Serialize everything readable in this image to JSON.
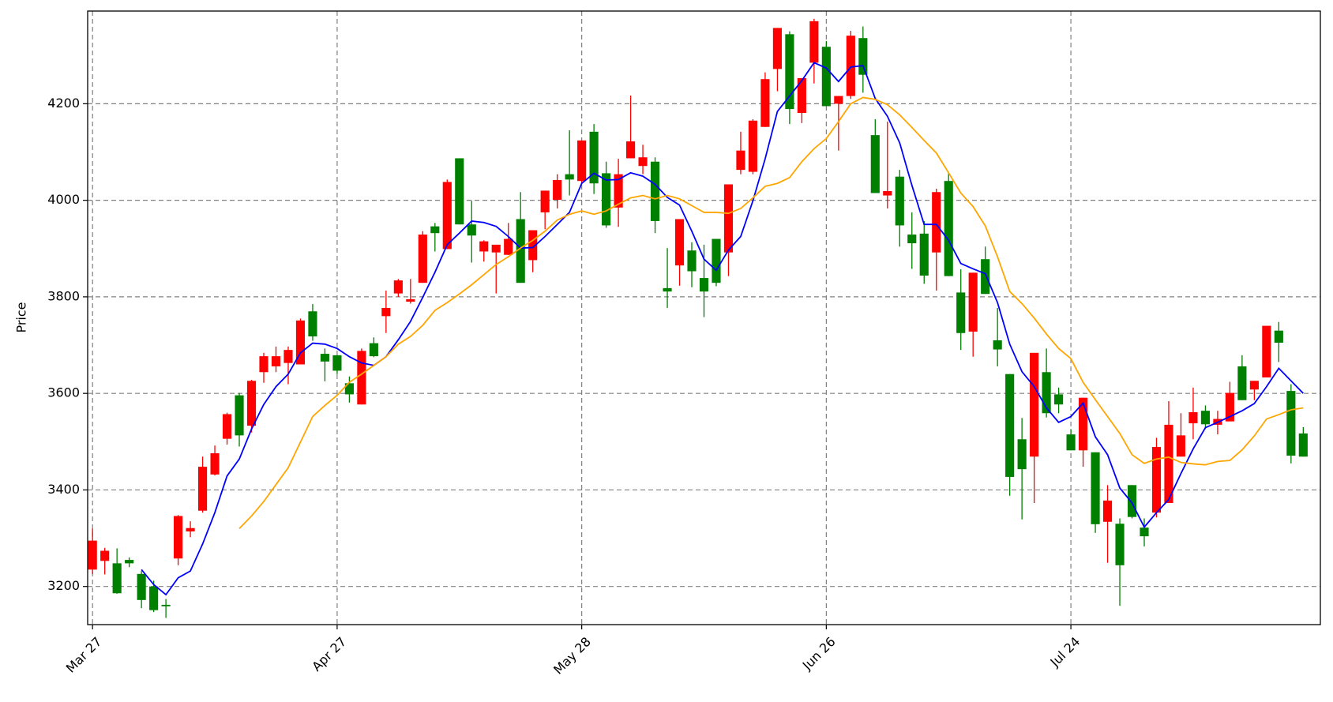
{
  "chart_data": {
    "type": "candlestick",
    "ylabel": "Price",
    "categories": [
      "Mar 27",
      null,
      null,
      null,
      null,
      null,
      null,
      null,
      null,
      null,
      null,
      null,
      null,
      null,
      null,
      null,
      null,
      null,
      null,
      null,
      "Apr 27",
      null,
      null,
      null,
      null,
      null,
      null,
      null,
      null,
      null,
      null,
      null,
      null,
      null,
      null,
      null,
      null,
      null,
      null,
      null,
      "May 28",
      null,
      null,
      null,
      null,
      null,
      null,
      null,
      null,
      null,
      null,
      null,
      null,
      null,
      null,
      null,
      null,
      null,
      null,
      null,
      "Jun 26",
      null,
      null,
      null,
      null,
      null,
      null,
      null,
      null,
      null,
      null,
      null,
      null,
      null,
      null,
      null,
      null,
      null,
      null,
      null,
      "Jul 24",
      null,
      null,
      null,
      null,
      null,
      null,
      null,
      null,
      null,
      null,
      null,
      null,
      null,
      null,
      null,
      null,
      null,
      null,
      null
    ],
    "open": [
      3235,
      3253,
      3248,
      3255,
      3226,
      3200,
      3162,
      3258,
      3314,
      3357,
      3432,
      3506,
      3596,
      3533,
      3644,
      3656,
      3663,
      3660,
      3770,
      3682,
      3679,
      3621,
      3577,
      3704,
      3760,
      3807,
      3790,
      3829,
      3946,
      3899,
      4087,
      3950,
      3894,
      3892,
      3887,
      3961,
      3876,
      3975,
      4001,
      4054,
      4040,
      4142,
      4056,
      3985,
      4087,
      4071,
      4080,
      3818,
      3865,
      3896,
      3839,
      3920,
      3892,
      4063,
      4059,
      4152,
      4272,
      4344,
      4181,
      4285,
      4318,
      4200,
      4216,
      4336,
      4135,
      4010,
      4049,
      3929,
      3931,
      3892,
      4040,
      3809,
      3728,
      3878,
      3710,
      3640,
      3505,
      3469,
      3644,
      3598,
      3515,
      3482,
      3478,
      3334,
      3330,
      3410,
      3322,
      3353,
      3373,
      3469,
      3538,
      3564,
      3535,
      3542,
      3656,
      3608,
      3633,
      3730,
      3605,
      3517
    ],
    "high": [
      3320,
      3280,
      3279,
      3260,
      3232,
      3212,
      3174,
      3348,
      3335,
      3469,
      3492,
      3560,
      3601,
      3628,
      3684,
      3697,
      3697,
      3755,
      3785,
      3693,
      3679,
      3635,
      3693,
      3716,
      3813,
      3837,
      3837,
      3936,
      3953,
      4043,
      4087,
      3999,
      3917,
      3908,
      3953,
      4017,
      3938,
      4020,
      4054,
      4145,
      4124,
      4158,
      4080,
      4086,
      4217,
      4115,
      4089,
      3901,
      3961,
      3913,
      3908,
      3920,
      4033,
      4142,
      4168,
      4265,
      4357,
      4350,
      4253,
      4376,
      4330,
      4216,
      4351,
      4360,
      4168,
      4163,
      4063,
      3975,
      3957,
      4024,
      4056,
      3857,
      3850,
      3904,
      3777,
      3640,
      3549,
      3684,
      3693,
      3612,
      3526,
      3591,
      3478,
      3410,
      3341,
      3410,
      3341,
      3508,
      3584,
      3559,
      3612,
      3575,
      3564,
      3624,
      3679,
      3626,
      3740,
      3748,
      3619,
      3530
    ],
    "low": [
      3226,
      3225,
      3185,
      3240,
      3155,
      3147,
      3135,
      3244,
      3302,
      3353,
      3430,
      3494,
      3490,
      3519,
      3622,
      3644,
      3619,
      3660,
      3709,
      3625,
      3640,
      3581,
      3577,
      3675,
      3725,
      3800,
      3786,
      3829,
      3894,
      3899,
      3950,
      3871,
      3873,
      3807,
      3887,
      3829,
      3851,
      3940,
      3983,
      4010,
      4036,
      4013,
      3943,
      3945,
      4087,
      4054,
      3932,
      3777,
      3823,
      3820,
      3758,
      3822,
      3843,
      4054,
      4054,
      4152,
      4226,
      4158,
      4160,
      4242,
      4195,
      4103,
      4210,
      4223,
      4015,
      3983,
      3904,
      3858,
      3827,
      3813,
      3843,
      3690,
      3676,
      3806,
      3656,
      3388,
      3339,
      3373,
      3550,
      3559,
      3482,
      3448,
      3311,
      3249,
      3160,
      3341,
      3283,
      3343,
      3373,
      3469,
      3505,
      3526,
      3515,
      3542,
      3586,
      3586,
      3633,
      3665,
      3455,
      3469
    ],
    "close": [
      3295,
      3274,
      3186,
      3248,
      3172,
      3151,
      3159,
      3346,
      3321,
      3448,
      3476,
      3557,
      3513,
      3626,
      3677,
      3677,
      3690,
      3751,
      3718,
      3666,
      3647,
      3598,
      3688,
      3677,
      3777,
      3834,
      3795,
      3929,
      3932,
      4038,
      3950,
      3927,
      3915,
      3908,
      3920,
      3829,
      3938,
      4020,
      4042,
      4043,
      4124,
      4035,
      3948,
      4054,
      4122,
      4089,
      3957,
      3811,
      3961,
      3853,
      3811,
      3829,
      4033,
      4103,
      4165,
      4251,
      4357,
      4189,
      4253,
      4371,
      4195,
      4216,
      4341,
      4260,
      4015,
      4019,
      3948,
      3911,
      3844,
      4017,
      3843,
      3725,
      3850,
      3806,
      3691,
      3427,
      3443,
      3684,
      3559,
      3577,
      3482,
      3591,
      3329,
      3378,
      3244,
      3344,
      3304,
      3489,
      3535,
      3513,
      3561,
      3536,
      3547,
      3601,
      3586,
      3626,
      3740,
      3705,
      3471,
      3469
    ],
    "up_color": "red",
    "down_color": "green",
    "series": [
      {
        "color": "blue",
        "values": [
          null,
          null,
          null,
          null,
          3235,
          3204,
          3183,
          3218,
          3232,
          3288,
          3353,
          3429,
          3464,
          3526,
          3577,
          3614,
          3640,
          3684,
          3704,
          3702,
          3693,
          3676,
          3663,
          3658,
          3676,
          3711,
          3749,
          3799,
          3851,
          3908,
          3932,
          3957,
          3954,
          3946,
          3925,
          3901,
          3902,
          3925,
          3950,
          3975,
          4035,
          4056,
          4042,
          4043,
          4057,
          4050,
          4033,
          4006,
          3990,
          3936,
          3878,
          3855,
          3897,
          3925,
          3999,
          4086,
          4184,
          4216,
          4248,
          4285,
          4274,
          4246,
          4276,
          4279,
          4211,
          4174,
          4119,
          4031,
          3950,
          3950,
          3917,
          3869,
          3858,
          3848,
          3788,
          3702,
          3645,
          3614,
          3570,
          3540,
          3552,
          3580,
          3510,
          3473,
          3404,
          3373,
          3323,
          3353,
          3380,
          3434,
          3485,
          3529,
          3540,
          3552,
          3564,
          3579,
          3614,
          3652,
          3626,
          3600
        ]
      },
      {
        "color": "orange",
        "values": [
          null,
          null,
          null,
          null,
          null,
          null,
          null,
          null,
          null,
          null,
          null,
          null,
          3320,
          3346,
          3376,
          3411,
          3446,
          3499,
          3552,
          3575,
          3596,
          3623,
          3640,
          3658,
          3676,
          3702,
          3718,
          3741,
          3772,
          3788,
          3806,
          3825,
          3846,
          3867,
          3883,
          3901,
          3917,
          3936,
          3959,
          3971,
          3978,
          3971,
          3978,
          3992,
          4005,
          4010,
          4003,
          4010,
          4003,
          3989,
          3975,
          3975,
          3973,
          3983,
          4005,
          4029,
          4035,
          4047,
          4080,
          4107,
          4128,
          4163,
          4200,
          4213,
          4209,
          4198,
          4177,
          4151,
          4124,
          4098,
          4057,
          4015,
          3987,
          3947,
          3883,
          3811,
          3786,
          3756,
          3723,
          3693,
          3672,
          3623,
          3587,
          3552,
          3517,
          3473,
          3455,
          3464,
          3468,
          3457,
          3454,
          3452,
          3459,
          3461,
          3483,
          3512,
          3547,
          3556,
          3566,
          3570
        ]
      }
    ],
    "ylim": [
      3121,
      4392
    ],
    "yticks": [
      3200,
      3400,
      3600,
      3800,
      4000,
      4200
    ],
    "grid": true
  }
}
